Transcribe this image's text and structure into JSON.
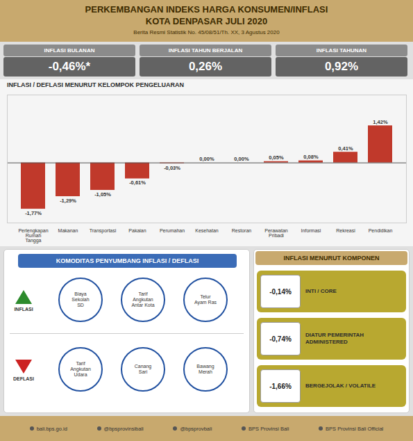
{
  "chart_data": {
    "type": "bar",
    "title": "INFLASI / DEFLASI MENURUT KELOMPOK PENGELUARAN",
    "categories": [
      "Perlengkapan\nRumah\nTangga",
      "Makanan",
      "Transportasi",
      "Pakaian",
      "Perumahan",
      "Kesehatan",
      "Restoran",
      "Perawatan\nPribadi",
      "Informasi",
      "Rekreasi",
      "Pendidikan"
    ],
    "values": [
      -1.77,
      -1.29,
      -1.05,
      -0.61,
      -0.03,
      0.0,
      0.0,
      0.05,
      0.08,
      0.41,
      1.42
    ],
    "value_labels": [
      "-1,77%",
      "-1,29%",
      "-1,05%",
      "-0,61%",
      "-0,03%",
      "0,00%",
      "0,00%",
      "0,05%",
      "0,08%",
      "0,41%",
      "1,42%"
    ],
    "color": "#C0392B",
    "ylim": [
      -2.3,
      2.6
    ],
    "data_labels": true,
    "tick_labels": "x",
    "grid": false,
    "annotations": [
      "PERKEMBANGAN INDEKS HARGA KONSUMEN/INFLASI",
      "KOTA DENPASAR JULI 2020",
      "Berita Resmi Statistik No. 45/08/51/Th. XX, 3 Agustus 2020",
      "INFLASI BULANAN",
      "-0,46%*",
      "INFLASI TAHUN BERJALAN",
      "0,26%",
      "INFLASI TAHUNAN",
      "0,92%",
      "KOMODITAS PENYUMBANG INFLASI / DEFLASI",
      "INFLASI",
      "Biaya\nSekolah\nSD",
      "Tarif\nAngkutan\nAntar Kota",
      "Telur\nAyam Ras",
      "DEFLASI",
      "Tarif\nAngkutan\nUdara",
      "Canang\nSari",
      "Bawang\nMerah",
      "INFLASI MENURUT KOMPONEN",
      "-0,14%",
      "INTI / CORE",
      "-0,74%",
      "DIATUR PEMERINTAH\nADMINISTERED",
      "-1,66%",
      "BERGEJOLAK / VOLATILE",
      "bali.bps.go.id",
      "@bpsprovinsibali",
      "@bpsprovbali",
      "BPS Provinsi Bali",
      "BPS Provinsi Bali Official"
    ]
  }
}
